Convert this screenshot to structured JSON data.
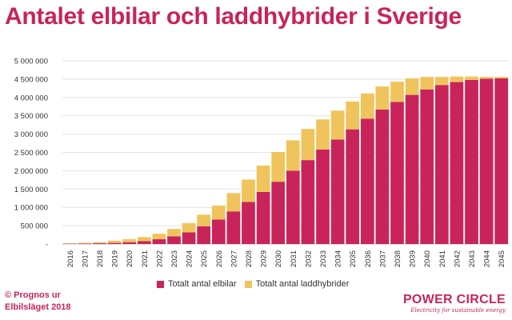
{
  "title": "Antalet elbilar och laddhybrider i Sverige",
  "source_line1": "© Prognos ur",
  "source_line2": "Elbilsläget 2018",
  "brand": {
    "name": "POWER CIRCLE",
    "tagline": "Electricity for sustainable energy"
  },
  "colors": {
    "elbilar": "#c8245a",
    "laddhybrider": "#f0c45c"
  },
  "chart_data": {
    "type": "bar",
    "stacked": true,
    "title": "Antalet elbilar och laddhybrider i Sverige",
    "ylim": [
      0,
      5000000
    ],
    "yticks": [
      {
        "value": 0,
        "label": "-"
      },
      {
        "value": 500000,
        "label": "500 000"
      },
      {
        "value": 1000000,
        "label": "1 000 000"
      },
      {
        "value": 1500000,
        "label": "1 500 000"
      },
      {
        "value": 2000000,
        "label": "2 000 000"
      },
      {
        "value": 2500000,
        "label": "2 500 000"
      },
      {
        "value": 3000000,
        "label": "3 000 000"
      },
      {
        "value": 3500000,
        "label": "3 500 000"
      },
      {
        "value": 4000000,
        "label": "4 000 000"
      },
      {
        "value": 4500000,
        "label": "4 500 000"
      },
      {
        "value": 5000000,
        "label": "5 000 000"
      }
    ],
    "grid": true,
    "legend": "bottom",
    "categories": [
      "2016",
      "2017",
      "2018",
      "2019",
      "2020",
      "2021",
      "2022",
      "2023",
      "2024",
      "2025",
      "2026",
      "2027",
      "2028",
      "2029",
      "2030",
      "2031",
      "2032",
      "2033",
      "2034",
      "2035",
      "2036",
      "2037",
      "2038",
      "2039",
      "2040",
      "2041",
      "2042",
      "2043",
      "2044",
      "2045"
    ],
    "series": [
      {
        "name": "Totalt antal elbilar",
        "values": [
          8000,
          12000,
          20000,
          30000,
          50000,
          80000,
          130000,
          210000,
          320000,
          480000,
          670000,
          890000,
          1150000,
          1420000,
          1700000,
          2000000,
          2290000,
          2580000,
          2850000,
          3130000,
          3420000,
          3670000,
          3880000,
          4070000,
          4220000,
          4340000,
          4420000,
          4480000,
          4510000,
          4520000
        ]
      },
      {
        "name": "Totalt antal laddhybrider",
        "values": [
          12000,
          18000,
          30000,
          60000,
          80000,
          110000,
          150000,
          200000,
          250000,
          320000,
          380000,
          500000,
          610000,
          720000,
          810000,
          830000,
          850000,
          820000,
          790000,
          760000,
          690000,
          630000,
          550000,
          450000,
          340000,
          220000,
          150000,
          90000,
          50000,
          40000
        ]
      }
    ]
  }
}
